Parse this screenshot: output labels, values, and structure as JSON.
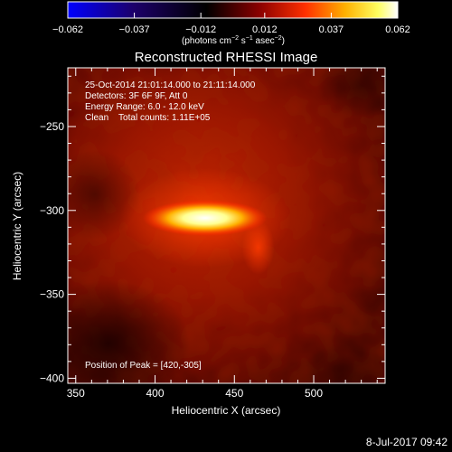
{
  "colorbar": {
    "ticks": [
      "−0.062",
      "−0.037",
      "−0.012",
      "0.012",
      "0.037",
      "0.062"
    ],
    "tick_values": [
      -0.062,
      -0.037,
      -0.012,
      0.012,
      0.037,
      0.062
    ],
    "range": [
      -0.062,
      0.062
    ],
    "unit_main": "(photons cm",
    "unit_sup1": "−2",
    "unit_mid": " s",
    "unit_sup2": "−1",
    "unit_mid2": " asec",
    "unit_sup3": "−2",
    "unit_end": ")",
    "colormap": "blue-black-red-yellow-white",
    "colors": [
      "#0000ff",
      "#000000",
      "#a00000",
      "#ff8000",
      "#ffff80",
      "#ffffff"
    ]
  },
  "title": "Reconstructed RHESSI Image",
  "info": {
    "time": "25-Oct-2014 21:01:14.000 to 21:11:14.000",
    "detectors": "Detectors: 3F 6F 9F, Att 0",
    "energy": "Energy Range: 6.0 - 12.0 keV",
    "clean": "Clean    Total counts: 1.11E+05"
  },
  "peak": "Position of Peak = [420,-305]",
  "footer_date": "8-Jul-2017 09:42",
  "chart_data": {
    "type": "heatmap",
    "title": "Reconstructed RHESSI Image",
    "xlabel": "Heliocentric X (arcsec)",
    "ylabel": "Heliocentric Y (arcsec)",
    "xlim": [
      345,
      545
    ],
    "ylim": [
      -403,
      -215
    ],
    "xticks": [
      350,
      400,
      450,
      500
    ],
    "yticks": [
      -250,
      -300,
      -350,
      -400
    ],
    "xtick_labels": [
      "350",
      "400",
      "450",
      "500"
    ],
    "ytick_labels": [
      "−250",
      "−300",
      "−350",
      "−400"
    ],
    "peak_position": [
      420,
      -305
    ],
    "source": {
      "x_range": [
        398,
        465
      ],
      "y_range": [
        -312,
        -297
      ],
      "tail": [
        465,
        -322
      ]
    },
    "colormap": "red-temperature"
  }
}
